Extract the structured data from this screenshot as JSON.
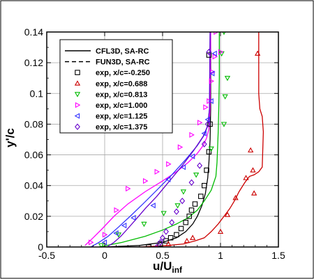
{
  "chart_data": {
    "type": "line",
    "title": "",
    "xlabel": "u/U",
    "xlabel_sub": "inf",
    "ylabel": "y'/c",
    "xlim": [
      -0.5,
      1.5
    ],
    "ylim": [
      0,
      0.14
    ],
    "xticks": [
      -0.5,
      0,
      0.5,
      1,
      1.5
    ],
    "xtick_labels": [
      "-0.5",
      "0",
      "0.5",
      "1",
      "1.5"
    ],
    "yticks": [
      0,
      0.02,
      0.04,
      0.06,
      0.08,
      0.1,
      0.12,
      0.14
    ],
    "ytick_labels": [
      "0",
      "0.02",
      "0.04",
      "0.06",
      "0.08",
      "0.1",
      "0.12",
      "0.14"
    ],
    "grid": true,
    "legend_position": "top-left",
    "legend": [
      {
        "label": "CFL3D, SA-RC",
        "kind": "line",
        "dash": "solid",
        "color": "#000000"
      },
      {
        "label": "FUN3D, SA-RC",
        "kind": "line",
        "dash": "dashed",
        "color": "#000000"
      },
      {
        "label": "exp, x/c=-0.250",
        "kind": "marker",
        "marker": "square",
        "color": "#000000"
      },
      {
        "label": "exp, x/c=0.688",
        "kind": "marker",
        "marker": "triangle-up",
        "color": "#cc0000"
      },
      {
        "label": "exp, x/c=0.813",
        "kind": "marker",
        "marker": "triangle-down",
        "color": "#00bb00"
      },
      {
        "label": "exp, x/c=1.000",
        "kind": "marker",
        "marker": "triangle-right",
        "color": "#ff00ff"
      },
      {
        "label": "exp, x/c=1.125",
        "kind": "marker",
        "marker": "triangle-left",
        "color": "#3333ff"
      },
      {
        "label": "exp, x/c=1.375",
        "kind": "marker",
        "marker": "diamond",
        "color": "#6600cc"
      }
    ],
    "series": [
      {
        "kind": "cfd",
        "color": "#000000",
        "x": [
          0.0,
          0.3,
          0.5,
          0.62,
          0.7,
          0.76,
          0.8,
          0.84,
          0.87,
          0.89,
          0.9,
          0.91,
          0.915,
          0.915
        ],
        "y": [
          0.0,
          0.001,
          0.003,
          0.006,
          0.01,
          0.015,
          0.02,
          0.027,
          0.035,
          0.045,
          0.055,
          0.07,
          0.09,
          0.14
        ]
      },
      {
        "kind": "cfd",
        "color": "#cc0000",
        "x": [
          0.3,
          0.55,
          0.68,
          0.78,
          0.86,
          0.92,
          0.98,
          1.03,
          1.08,
          1.12,
          1.16,
          1.21,
          1.25,
          1.29,
          1.33,
          1.36,
          1.37,
          1.36,
          1.34,
          1.33,
          1.33
        ],
        "y": [
          0.0,
          0.001,
          0.002,
          0.004,
          0.006,
          0.01,
          0.015,
          0.02,
          0.025,
          0.03,
          0.036,
          0.042,
          0.046,
          0.047,
          0.049,
          0.052,
          0.075,
          0.085,
          0.09,
          0.1,
          0.14
        ]
      },
      {
        "kind": "cfd",
        "color": "#00bb00",
        "x": [
          -0.05,
          0.15,
          0.35,
          0.5,
          0.62,
          0.72,
          0.8,
          0.86,
          0.92,
          0.96,
          0.97,
          0.975,
          0.98,
          0.985,
          0.99,
          0.99
        ],
        "y": [
          0.0,
          0.003,
          0.007,
          0.011,
          0.015,
          0.019,
          0.024,
          0.03,
          0.037,
          0.046,
          0.055,
          0.065,
          0.075,
          0.09,
          0.11,
          0.14
        ]
      },
      {
        "kind": "cfd",
        "color": "#ff00ff",
        "x": [
          -0.17,
          -0.1,
          -0.02,
          0.08,
          0.2,
          0.35,
          0.5,
          0.62,
          0.72,
          0.8,
          0.85,
          0.88,
          0.9,
          0.91,
          0.915
        ],
        "y": [
          0.001,
          0.006,
          0.012,
          0.02,
          0.028,
          0.036,
          0.043,
          0.049,
          0.055,
          0.061,
          0.066,
          0.071,
          0.077,
          0.09,
          0.14
        ]
      },
      {
        "kind": "cfd",
        "color": "#3333ff",
        "x": [
          -0.12,
          -0.05,
          0.03,
          0.12,
          0.22,
          0.33,
          0.45,
          0.58,
          0.7,
          0.8,
          0.86,
          0.89,
          0.905,
          0.91
        ],
        "y": [
          0.0,
          0.003,
          0.007,
          0.013,
          0.02,
          0.028,
          0.037,
          0.047,
          0.057,
          0.066,
          0.073,
          0.079,
          0.09,
          0.14
        ]
      },
      {
        "kind": "cfd",
        "color": "#6600cc",
        "x": [
          0.02,
          0.08,
          0.14,
          0.2,
          0.27,
          0.35,
          0.45,
          0.56,
          0.67,
          0.77,
          0.85,
          0.89,
          0.905,
          0.91
        ],
        "y": [
          0.0,
          0.003,
          0.007,
          0.012,
          0.018,
          0.025,
          0.033,
          0.043,
          0.053,
          0.063,
          0.072,
          0.079,
          0.09,
          0.14
        ]
      },
      {
        "kind": "exp",
        "name": "exp, x/c=-0.250",
        "marker": "square",
        "color": "#000000",
        "x": [
          0.38,
          0.48,
          0.53,
          0.57,
          0.62,
          0.66,
          0.7,
          0.73,
          0.75,
          0.78,
          0.83,
          0.86,
          0.88,
          0.9,
          0.91,
          0.9
        ],
        "y": [
          0.0,
          0.002,
          0.004,
          0.006,
          0.008,
          0.012,
          0.016,
          0.02,
          0.024,
          0.028,
          0.033,
          0.04,
          0.05,
          0.062,
          0.08,
          0.125
        ]
      },
      {
        "kind": "exp",
        "name": "exp, x/c=0.688",
        "marker": "triangle-up",
        "color": "#cc0000",
        "x": [
          0.55,
          0.71,
          0.76,
          1.0,
          1.06,
          1.13,
          1.22,
          1.28,
          1.29,
          1.26,
          1.32
        ],
        "y": [
          0.002,
          0.004,
          0.006,
          0.01,
          0.021,
          0.032,
          0.045,
          0.05,
          0.035,
          0.063,
          0.126
        ]
      },
      {
        "kind": "exp",
        "name": "exp, x/c=0.813",
        "marker": "triangle-down",
        "color": "#00bb00",
        "x": [
          -0.03,
          0.12,
          0.34,
          0.51,
          0.63,
          0.68,
          0.79,
          0.92,
          1.03,
          1.04,
          1.06,
          1.01,
          1.03
        ],
        "y": [
          0.001,
          0.008,
          0.015,
          0.022,
          0.027,
          0.036,
          0.047,
          0.064,
          0.08,
          0.098,
          0.11,
          0.126,
          0.14
        ]
      },
      {
        "kind": "exp",
        "name": "exp, x/c=1.000",
        "marker": "triangle-right",
        "color": "#ff00ff",
        "x": [
          -0.12,
          0.0,
          0.1,
          0.2,
          0.35,
          0.45,
          0.55,
          0.65,
          0.75,
          0.82,
          0.87,
          0.9,
          0.92,
          0.93,
          0.95,
          1.0,
          0.96
        ],
        "y": [
          0.003,
          0.008,
          0.024,
          0.038,
          0.043,
          0.049,
          0.054,
          0.065,
          0.073,
          0.081,
          0.091,
          0.095,
          0.108,
          0.114,
          0.124,
          0.127,
          0.14
        ]
      },
      {
        "kind": "exp",
        "name": "exp, x/c=1.125",
        "marker": "triangle-left",
        "color": "#3333ff",
        "x": [
          0.0,
          0.1,
          0.17,
          0.25,
          0.42,
          0.55,
          0.68,
          0.76,
          0.86,
          0.89,
          0.92,
          0.93,
          0.95
        ],
        "y": [
          0.003,
          0.009,
          0.014,
          0.019,
          0.027,
          0.044,
          0.052,
          0.059,
          0.074,
          0.083,
          0.095,
          0.113,
          0.126
        ]
      },
      {
        "kind": "exp",
        "name": "exp, x/c=1.375",
        "marker": "diamond",
        "color": "#6600cc",
        "x": [
          0.45,
          0.48,
          0.5,
          0.53,
          0.58,
          0.62,
          0.67,
          0.75,
          0.82,
          0.86,
          0.89,
          0.9
        ],
        "y": [
          0.0,
          0.003,
          0.006,
          0.01,
          0.016,
          0.023,
          0.03,
          0.042,
          0.053,
          0.067,
          0.08,
          0.127
        ]
      }
    ]
  }
}
